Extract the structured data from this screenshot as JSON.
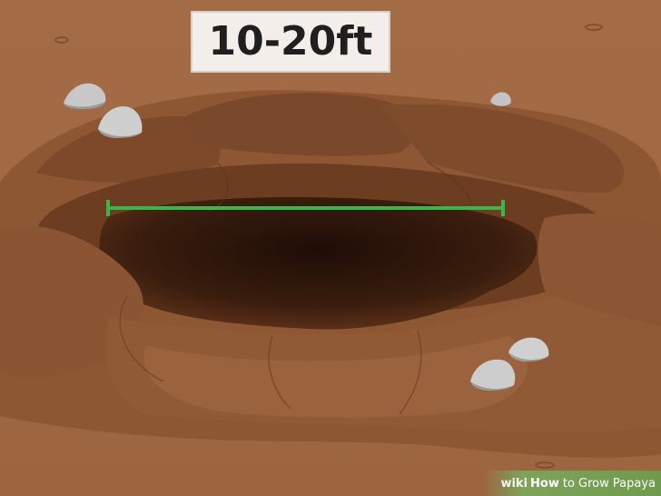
{
  "label": {
    "text": "10-20ft"
  },
  "watermark": {
    "brand": "wiki",
    "how": "How",
    "rest": "to Grow Papaya"
  },
  "colors": {
    "soil_light": "#a8704a",
    "soil_mid": "#8a5634",
    "soil_dark": "#6e3f22",
    "hole": "#2a150c",
    "measure_line": "#3cb54a",
    "rock": "#c9c9c9"
  },
  "icons": [
    "rock-icon",
    "measurement-line-icon"
  ]
}
